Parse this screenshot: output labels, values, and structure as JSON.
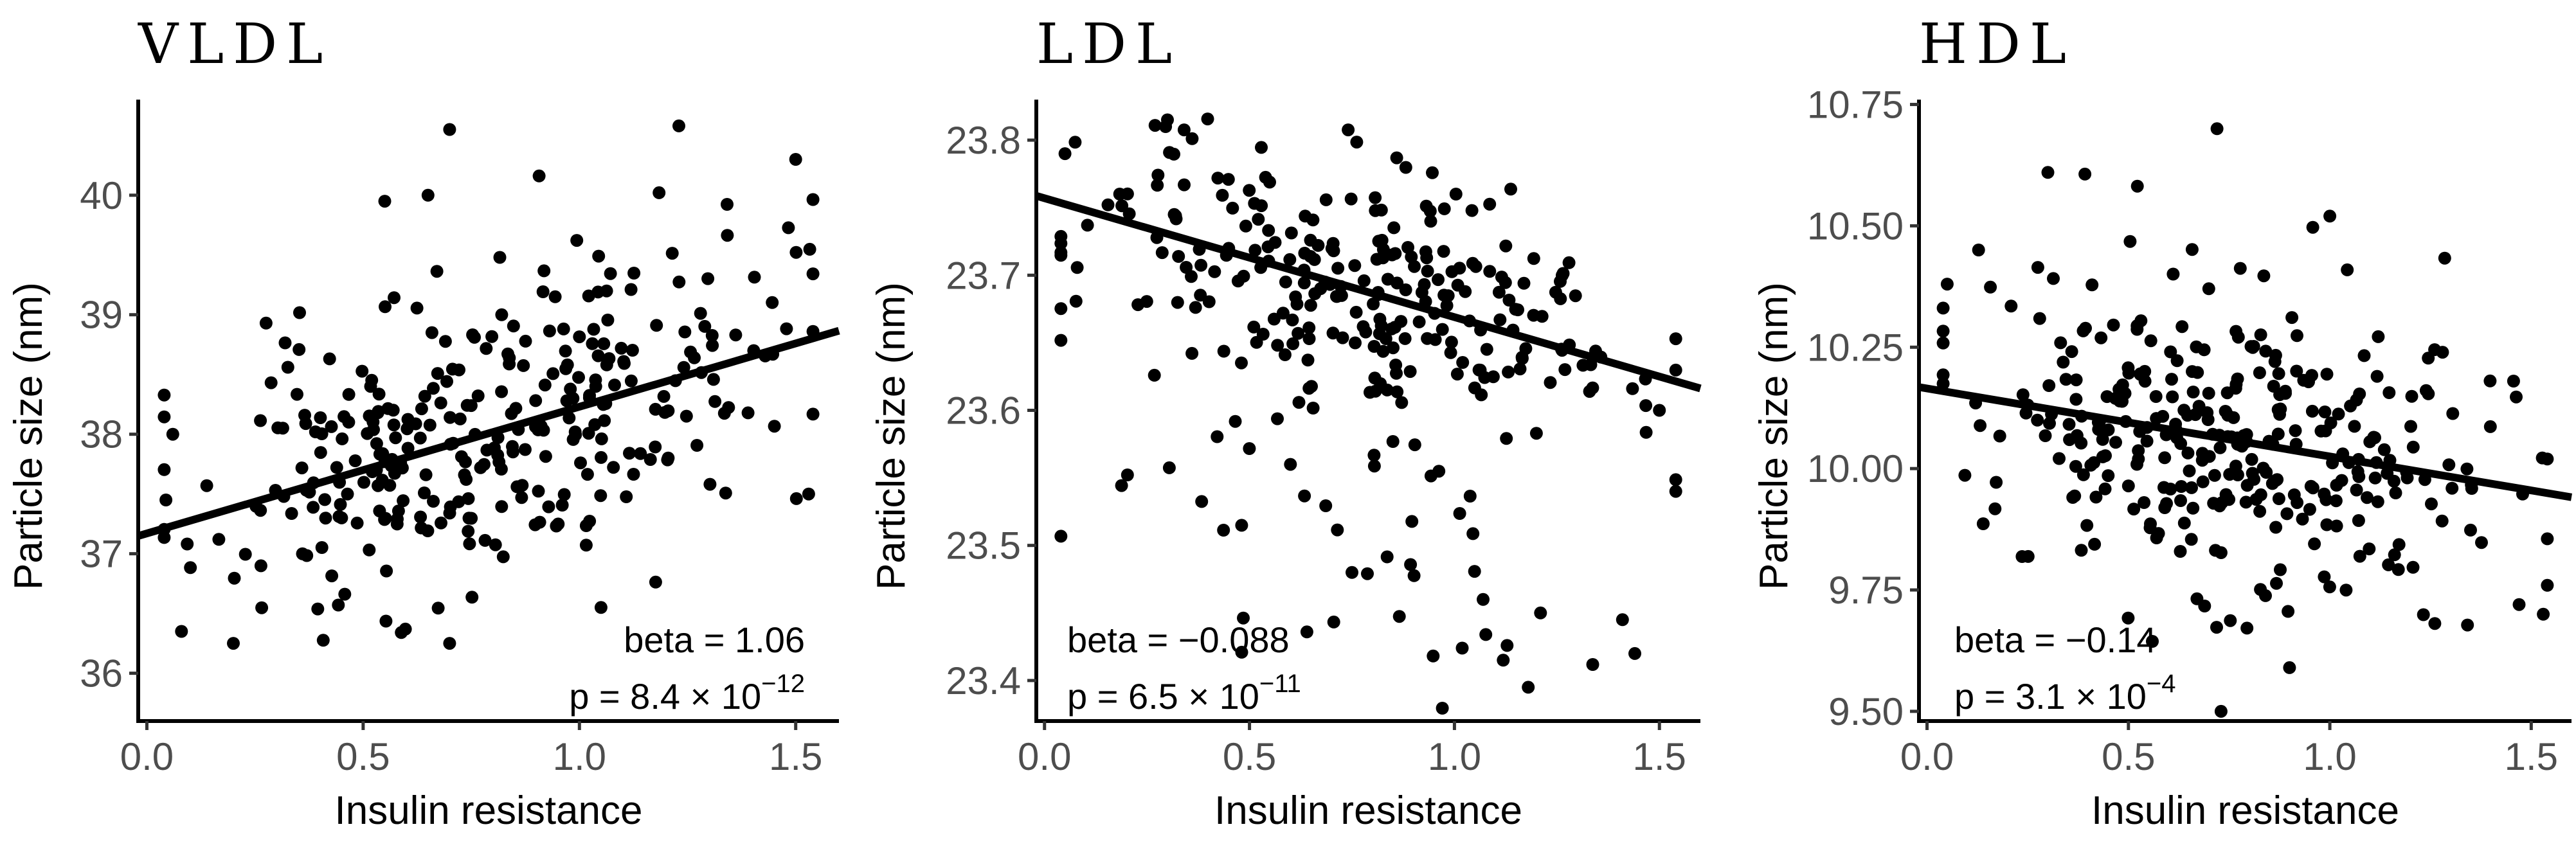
{
  "figure": {
    "layout": "1x3 panels"
  },
  "chart_data": [
    {
      "type": "scatter",
      "title": "VLDL",
      "xlabel": "Insulin resistance",
      "ylabel": "Particle size (nm)",
      "xlim": [
        -0.02,
        1.6
      ],
      "ylim": [
        35.6,
        40.8
      ],
      "xticks": [
        0.0,
        0.5,
        1.0,
        1.5
      ],
      "xtick_labels": [
        "0.0",
        "0.5",
        "1.0",
        "1.5"
      ],
      "yticks": [
        36,
        37,
        38,
        39,
        40
      ],
      "ytick_labels": [
        "36",
        "37",
        "38",
        "39",
        "40"
      ],
      "fit_line": {
        "intercept": 37.17,
        "slope": 1.06
      },
      "annotation": {
        "beta": "beta = 1.06",
        "p": "p = 8.4 × 10",
        "p_exp": "−12"
      },
      "generator": {
        "seed": 11,
        "n": 320,
        "noise": 0.65,
        "skew": 0
      },
      "marked_points": [
        {
          "x": 0.7,
          "y": 40.55
        },
        {
          "x": 1.23,
          "y": 40.58
        },
        {
          "x": 1.5,
          "y": 40.3
        },
        {
          "x": 0.55,
          "y": 39.95
        },
        {
          "x": 0.65,
          "y": 40.0
        },
        {
          "x": 0.08,
          "y": 36.35
        },
        {
          "x": 0.2,
          "y": 36.25
        },
        {
          "x": 0.7,
          "y": 36.25
        },
        {
          "x": 1.05,
          "y": 36.55
        },
        {
          "x": 0.06,
          "y": 38.0
        },
        {
          "x": 1.53,
          "y": 37.5
        }
      ]
    },
    {
      "type": "scatter",
      "title": "LDL",
      "xlabel": "Insulin resistance",
      "ylabel": "Particle size (nm)",
      "xlim": [
        -0.02,
        1.6
      ],
      "ylim": [
        23.37,
        23.83
      ],
      "xticks": [
        0.0,
        0.5,
        1.0,
        1.5
      ],
      "xtick_labels": [
        "0.0",
        "0.5",
        "1.0",
        "1.5"
      ],
      "yticks": [
        23.4,
        23.5,
        23.6,
        23.7,
        23.8
      ],
      "ytick_labels": [
        "23.4",
        "23.5",
        "23.6",
        "23.7",
        "23.8"
      ],
      "fit_line": {
        "intercept": 23.757,
        "slope": -0.088
      },
      "annotation": {
        "beta": "beta = −0.088",
        "p": "p = 6.5 × 10",
        "p_exp": "−11"
      },
      "generator": {
        "seed": 23,
        "n": 300,
        "noise": 0.045,
        "skew": -0.08
      },
      "marked_points": [
        {
          "x": 0.3,
          "y": 23.815
        },
        {
          "x": 0.05,
          "y": 23.79
        },
        {
          "x": 1.18,
          "y": 23.395
        },
        {
          "x": 1.44,
          "y": 23.42
        },
        {
          "x": 1.41,
          "y": 23.445
        },
        {
          "x": 1.21,
          "y": 23.45
        },
        {
          "x": 0.75,
          "y": 23.48
        },
        {
          "x": 1.07,
          "y": 23.46
        },
        {
          "x": 0.6,
          "y": 23.56
        },
        {
          "x": 1.5,
          "y": 23.6
        }
      ]
    },
    {
      "type": "scatter",
      "title": "HDL",
      "xlabel": "Insulin resistance",
      "ylabel": "Particle size (nm)",
      "xlim": [
        -0.02,
        1.6
      ],
      "ylim": [
        9.48,
        10.76
      ],
      "xticks": [
        0.0,
        0.5,
        1.0,
        1.5
      ],
      "xtick_labels": [
        "0.0",
        "0.5",
        "1.0",
        "1.5"
      ],
      "yticks": [
        9.5,
        9.75,
        10.0,
        10.25,
        10.5,
        10.75
      ],
      "ytick_labels": [
        "9.50",
        "9.75",
        "10.00",
        "10.25",
        "10.50",
        "10.75"
      ],
      "fit_line": {
        "intercept": 10.165,
        "slope": -0.14
      },
      "annotation": {
        "beta": "beta = −0.14",
        "p": "p = 3.1 × 10",
        "p_exp": "−4"
      },
      "generator": {
        "seed": 37,
        "n": 330,
        "noise": 0.16,
        "skew": 0
      },
      "marked_points": [
        {
          "x": 0.72,
          "y": 10.7
        },
        {
          "x": 0.3,
          "y": 10.61
        },
        {
          "x": 0.05,
          "y": 10.38
        },
        {
          "x": 0.73,
          "y": 9.5
        },
        {
          "x": 0.9,
          "y": 9.59
        },
        {
          "x": 1.47,
          "y": 9.72
        },
        {
          "x": 1.53,
          "y": 9.7
        },
        {
          "x": 1.0,
          "y": 10.52
        }
      ]
    }
  ]
}
